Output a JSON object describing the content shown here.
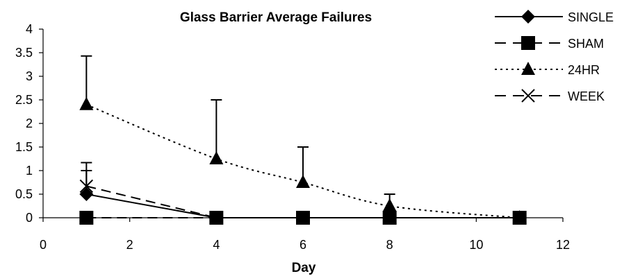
{
  "chart_data": {
    "type": "line",
    "title": "Glass Barrier Average Failures",
    "xlabel": "Day",
    "ylabel": "",
    "xlim": [
      0,
      12
    ],
    "ylim": [
      0,
      4
    ],
    "xticks": [
      0,
      2,
      4,
      6,
      8,
      10,
      12
    ],
    "yticks": [
      0,
      0.5,
      1,
      1.5,
      2,
      2.5,
      3,
      3.5,
      4
    ],
    "grid": false,
    "legend_position": "top-right",
    "series": [
      {
        "name": "SINGLE",
        "marker": "diamond",
        "line": "solid",
        "x": [
          1,
          4,
          6,
          8,
          11
        ],
        "y": [
          0.5,
          0,
          0,
          0,
          0
        ],
        "error": [
          0.5,
          0,
          0,
          0,
          0
        ]
      },
      {
        "name": "SHAM",
        "marker": "square",
        "line": "long-dash",
        "x": [
          1,
          4,
          6,
          8,
          11
        ],
        "y": [
          0,
          0,
          0,
          0,
          0
        ],
        "error": [
          0,
          0,
          0,
          0,
          0
        ]
      },
      {
        "name": "24HR",
        "marker": "triangle",
        "line": "dotted",
        "x": [
          1,
          4,
          6,
          8,
          11
        ],
        "y": [
          2.4,
          1.25,
          0.75,
          0.25,
          0
        ],
        "error": [
          1.03,
          1.25,
          0.75,
          0.25,
          0
        ]
      },
      {
        "name": "WEEK",
        "marker": "x",
        "line": "long-dash",
        "x": [
          1,
          4,
          6,
          8,
          11
        ],
        "y": [
          0.67,
          0,
          0,
          0,
          0
        ],
        "error": [
          0.5,
          0,
          0,
          0,
          0
        ]
      }
    ]
  }
}
